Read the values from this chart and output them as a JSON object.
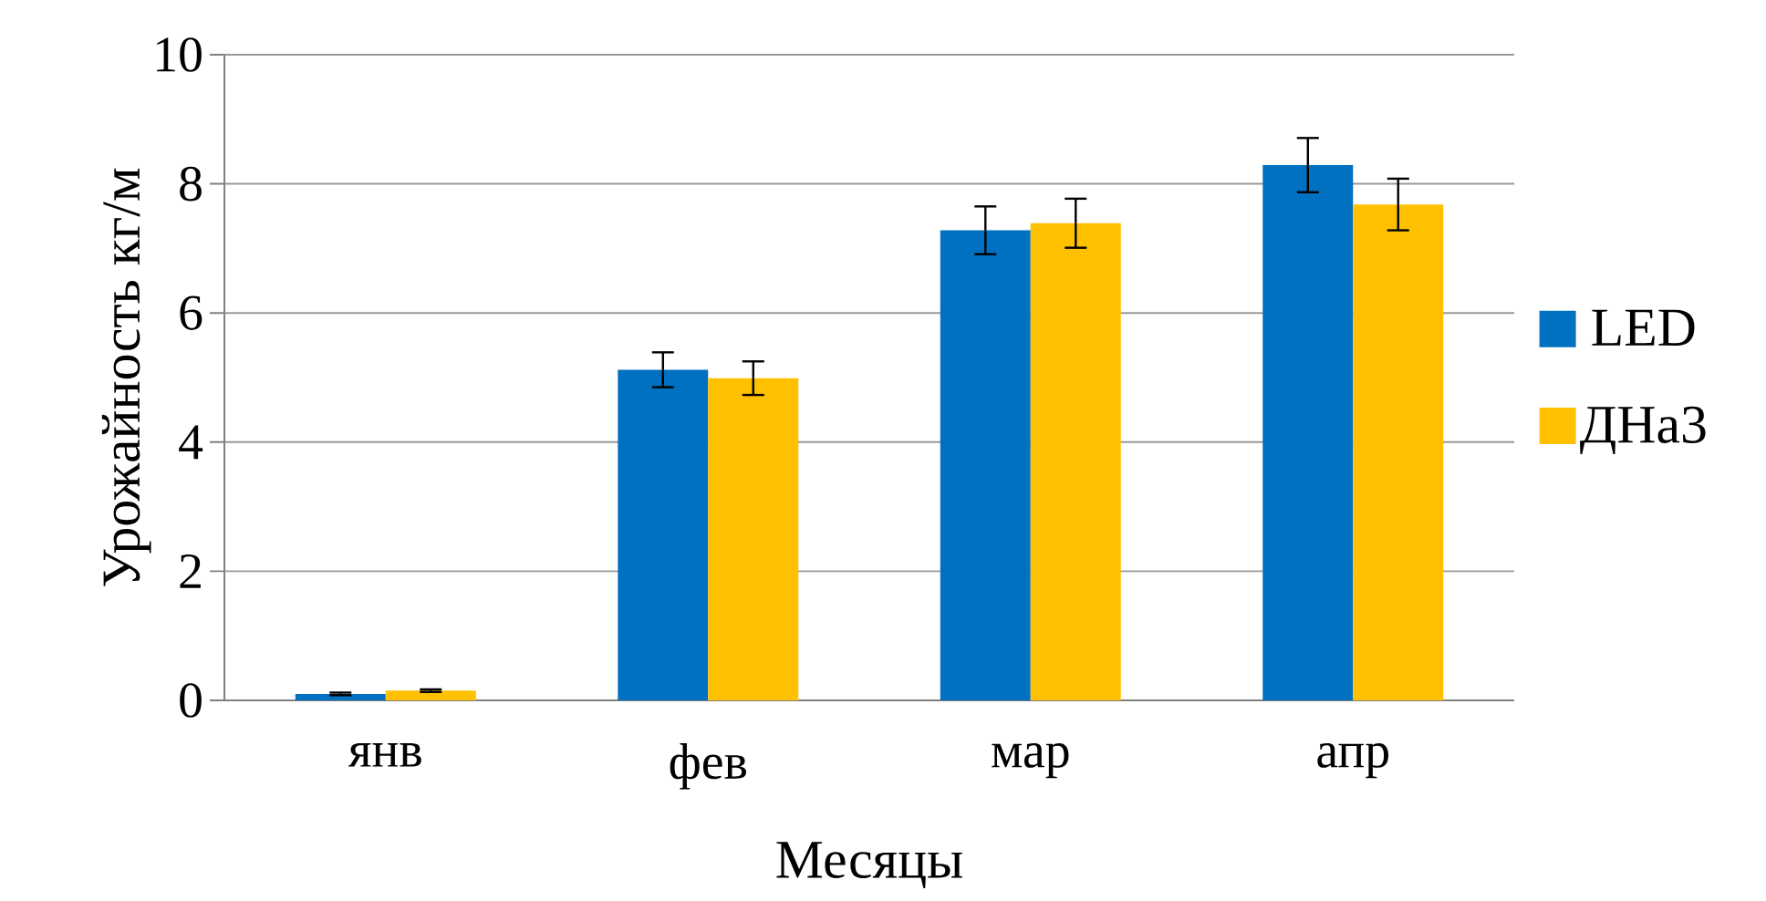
{
  "chart_data": {
    "type": "bar",
    "xlabel": "Месяцы",
    "ylabel": "Урожайность кг/м",
    "categories": [
      "янв",
      "фев",
      "мар",
      "апр"
    ],
    "series": [
      {
        "name": "LED",
        "color": "#0070c0",
        "values": [
          0.1,
          5.12,
          7.28,
          8.29
        ],
        "errors": [
          0.02,
          0.27,
          0.37,
          0.42
        ]
      },
      {
        "name": "ДНа3",
        "color": "#ffc000",
        "values": [
          0.15,
          4.99,
          7.39,
          7.68
        ],
        "errors": [
          0.02,
          0.26,
          0.38,
          0.4
        ]
      }
    ],
    "ylim": [
      0,
      10
    ],
    "yticks": [
      0,
      2,
      4,
      6,
      8,
      10
    ],
    "grid": "y",
    "legend": "right"
  }
}
